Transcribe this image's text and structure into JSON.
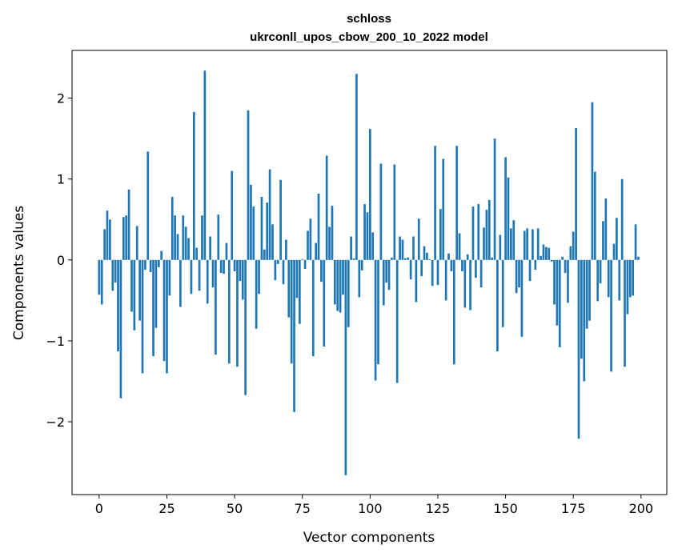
{
  "chart_data": {
    "type": "bar",
    "title": "schloss",
    "subtitle": "ukrconll_upos_cbow_200_10_2022 model",
    "xlabel": "Vector components",
    "ylabel": "Components values",
    "xlim": [
      -10,
      209.5
    ],
    "ylim": [
      -2.9,
      2.59
    ],
    "xticks": [
      0,
      25,
      50,
      75,
      100,
      125,
      150,
      175,
      200
    ],
    "xtick_labels": [
      "0",
      "25",
      "50",
      "75",
      "100",
      "125",
      "150",
      "175",
      "200"
    ],
    "yticks": [
      -2,
      -1,
      0,
      1,
      2
    ],
    "ytick_labels": [
      "−2",
      "−1",
      "0",
      "1",
      "2"
    ],
    "grid": false,
    "bar_color": "#1f77b4",
    "values": [
      -0.43,
      -0.55,
      0.38,
      0.61,
      0.5,
      -0.38,
      -0.28,
      -1.13,
      -1.71,
      0.53,
      0.55,
      0.87,
      -0.64,
      -0.87,
      0.42,
      -0.75,
      -1.4,
      -0.12,
      1.34,
      -0.15,
      -1.19,
      -0.84,
      -0.09,
      0.11,
      -1.25,
      -1.4,
      -0.44,
      0.78,
      0.55,
      0.32,
      -0.58,
      0.55,
      0.41,
      0.27,
      -0.42,
      1.83,
      0.15,
      -0.38,
      0.55,
      2.34,
      -0.54,
      0.29,
      -0.34,
      -1.17,
      0.56,
      -0.16,
      -0.17,
      0.21,
      -1.28,
      1.1,
      -0.14,
      -1.32,
      -0.26,
      -0.49,
      -1.67,
      1.85,
      0.93,
      0.66,
      -0.85,
      -0.42,
      0.78,
      0.13,
      0.71,
      1.12,
      0.44,
      -0.25,
      -0.05,
      0.99,
      -0.3,
      0.25,
      -0.71,
      -1.28,
      -1.88,
      -0.47,
      -0.79,
      0.01,
      -0.11,
      0.36,
      0.51,
      -1.19,
      0.21,
      0.82,
      -0.27,
      -1.07,
      1.29,
      0.41,
      0.67,
      -0.55,
      -0.63,
      -0.65,
      -0.43,
      -2.66,
      -0.83,
      0.29,
      0.02,
      2.3,
      -0.46,
      -0.13,
      0.69,
      0.59,
      1.62,
      0.34,
      -1.49,
      -1.29,
      1.19,
      -0.56,
      -0.28,
      -0.37,
      0.03,
      1.18,
      -1.52,
      0.29,
      0.25,
      0.02,
      0.03,
      -0.24,
      0.29,
      -0.52,
      0.51,
      -0.2,
      0.17,
      0.09,
      0.01,
      -0.32,
      1.41,
      -0.31,
      0.63,
      1.25,
      -0.5,
      0.08,
      -0.14,
      -1.29,
      1.41,
      0.33,
      -0.14,
      -0.59,
      0.07,
      -0.62,
      0.66,
      -0.22,
      0.69,
      -0.34,
      0.4,
      0.62,
      0.74,
      0.03,
      1.5,
      -1.13,
      0.31,
      -0.83,
      1.27,
      1.02,
      0.39,
      0.49,
      -0.41,
      -0.34,
      -0.95,
      0.36,
      0.39,
      -0.26,
      0.38,
      -0.12,
      0.39,
      0.05,
      0.19,
      0.16,
      0.15,
      -0.02,
      -0.55,
      -0.81,
      -1.08,
      0.04,
      -0.16,
      -0.53,
      0.17,
      0.35,
      1.63,
      -2.21,
      -1.22,
      -1.5,
      -0.85,
      -0.75,
      1.95,
      1.09,
      -0.51,
      -0.29,
      0.48,
      0.76,
      -0.46,
      -1.38,
      0.2,
      0.52,
      -0.5,
      1.0,
      -1.32,
      -0.67,
      -0.46,
      -0.44,
      0.44,
      0.04
    ]
  }
}
